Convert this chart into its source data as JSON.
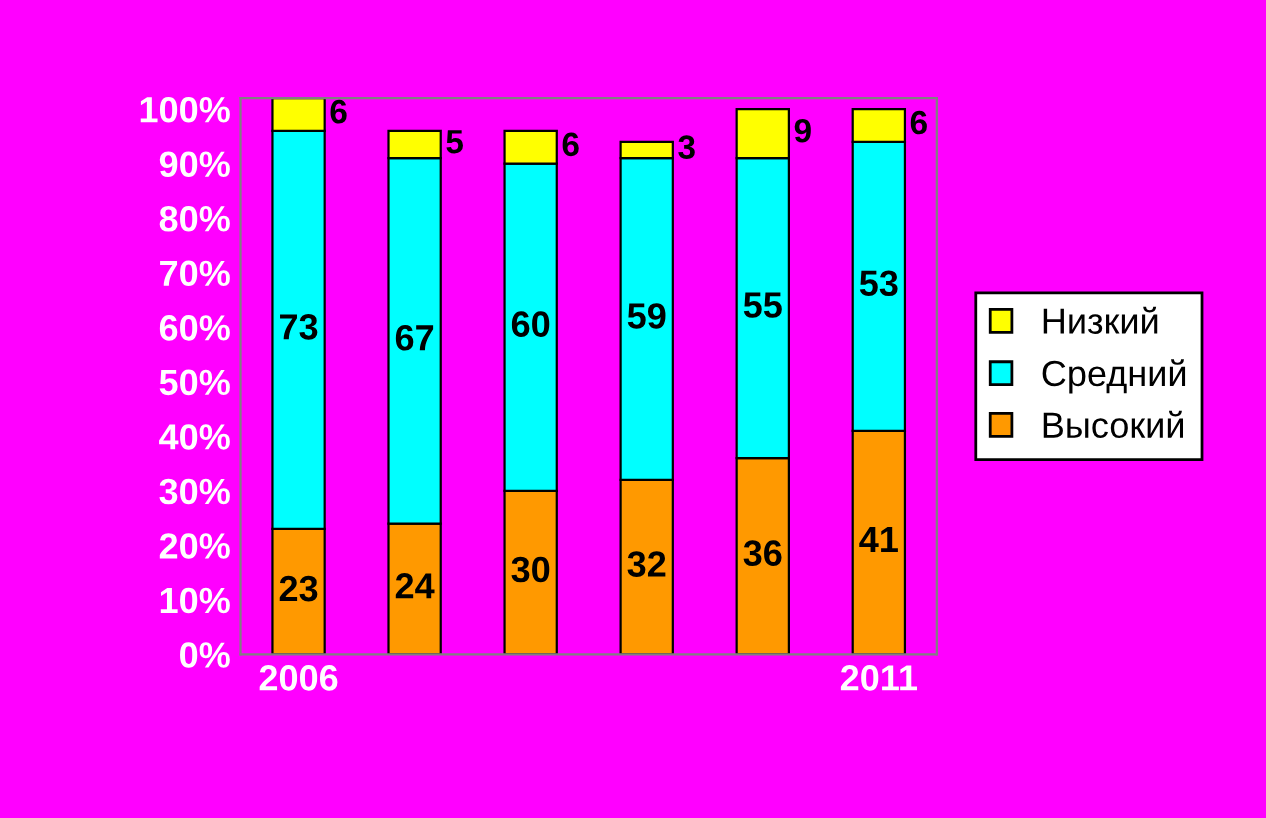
{
  "chart_data": {
    "type": "bar",
    "stacked": true,
    "categories": [
      "2006",
      null,
      null,
      null,
      null,
      "2011"
    ],
    "series": [
      {
        "name": "Высокий",
        "color": "#ff9900",
        "values": [
          23,
          24,
          30,
          32,
          36,
          41
        ]
      },
      {
        "name": "Средний",
        "color": "#00ffff",
        "values": [
          73,
          67,
          60,
          59,
          55,
          53
        ]
      },
      {
        "name": "Низкий",
        "color": "#ffff00",
        "values": [
          6,
          5,
          6,
          3,
          9,
          6
        ]
      }
    ],
    "ylim": [
      0,
      102
    ],
    "yticks": [
      {
        "value": 0,
        "label": "0%"
      },
      {
        "value": 10,
        "label": "10%"
      },
      {
        "value": 20,
        "label": "20%"
      },
      {
        "value": 30,
        "label": "30%"
      },
      {
        "value": 40,
        "label": "40%"
      },
      {
        "value": 50,
        "label": "50%"
      },
      {
        "value": 60,
        "label": "60%"
      },
      {
        "value": 70,
        "label": "70%"
      },
      {
        "value": 80,
        "label": "80%"
      },
      {
        "value": 90,
        "label": "90%"
      },
      {
        "value": 100,
        "label": "100%"
      }
    ],
    "data_labels": true,
    "legend": "right",
    "grid": false
  }
}
